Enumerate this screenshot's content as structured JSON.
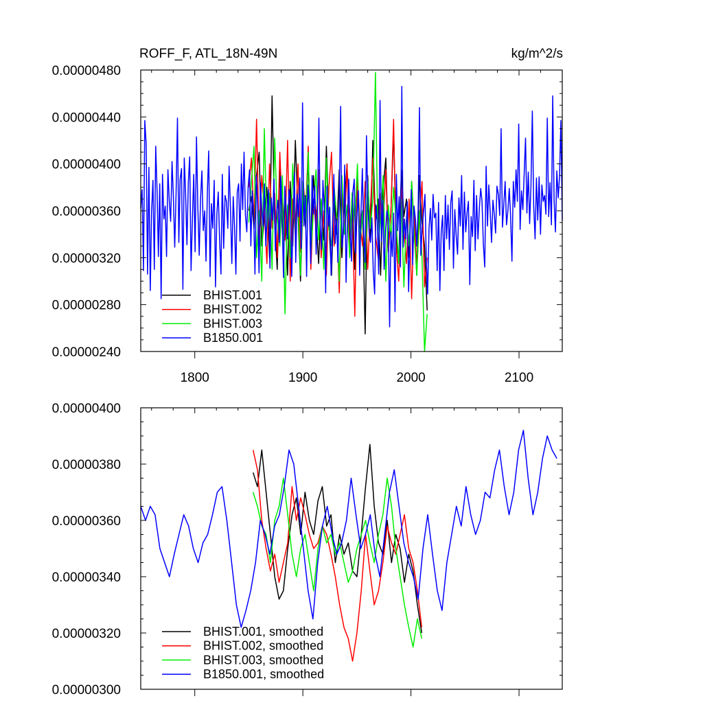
{
  "figure": {
    "title_left": "ROFF_F, ATL_18N-49N",
    "title_right": "kg/m^2/s"
  },
  "chart_data": [
    {
      "type": "line",
      "title": "ROFF_F, ATL_18N-49N",
      "units": "kg/m^2/s",
      "xlim": [
        1750,
        2140
      ],
      "ylim": [
        2.4e-06,
        4.8e-06
      ],
      "xticks": [
        1800,
        1900,
        2000,
        2100
      ],
      "xtick_labels": [
        "1800",
        "1900",
        "2000",
        "2100"
      ],
      "yticks": [
        2.4e-06,
        2.8e-06,
        3.2e-06,
        3.6e-06,
        4e-06,
        4.4e-06,
        4.8e-06
      ],
      "ytick_labels": [
        "0.00000240",
        "0.00000280",
        "0.00000320",
        "0.00000360",
        "0.00000400",
        "0.00000440",
        "0.00000480"
      ],
      "legend_position": "bottom-left",
      "series": [
        {
          "name": "BHIST.001",
          "color": "#000000",
          "x_start": 1850,
          "x_end": 2015,
          "values": [
            3.6,
            3.72,
            3.45,
            3.9,
            4.1,
            3.3,
            3.55,
            3.8,
            3.2,
            4.58,
            3.5,
            3.1,
            3.95,
            3.4,
            3.7,
            3.05,
            3.85,
            3.3,
            4.2,
            3.6,
            3.0,
            3.75,
            3.45,
            4.05,
            3.25,
            3.9,
            3.55,
            3.15,
            3.7,
            3.35,
            4.15,
            3.5,
            3.05,
            3.8,
            3.4,
            3.95,
            3.2,
            3.65,
            4.0,
            3.3,
            3.75,
            3.1,
            3.85,
            3.45,
            3.6,
            2.55,
            3.9,
            3.35,
            4.2,
            3.5,
            3.7,
            3.05,
            3.8,
            4.05,
            3.25,
            3.6,
            4.28,
            3.4,
            3.15,
            3.95,
            3.55,
            3.7,
            3.2,
            3.85,
            3.45,
            3.05,
            3.9,
            3.5,
            3.3,
            2.75
          ]
        },
        {
          "name": "BHIST.002",
          "color": "#ff0000",
          "x_start": 1850,
          "x_end": 2015,
          "values": [
            3.8,
            4.05,
            3.5,
            4.38,
            3.3,
            3.9,
            3.6,
            3.15,
            4.0,
            3.45,
            3.75,
            3.2,
            4.1,
            3.55,
            3.35,
            4.2,
            3.0,
            3.7,
            3.4,
            4.0,
            3.25,
            3.85,
            3.6,
            4.15,
            3.1,
            3.7,
            3.45,
            3.95,
            3.2,
            3.6,
            3.05,
            3.8,
            4.1,
            3.3,
            3.55,
            2.9,
            3.75,
            3.4,
            4.0,
            3.2,
            3.65,
            2.7,
            3.9,
            3.5,
            3.3,
            3.85,
            3.1,
            3.6,
            4.05,
            3.4,
            3.2,
            3.75,
            3.5,
            3.95,
            3.25,
            3.6,
            4.38,
            3.3,
            3.0,
            3.8,
            3.45,
            3.15,
            3.7,
            2.85,
            3.6,
            3.1,
            3.5,
            3.85,
            2.95,
            3.2
          ]
        },
        {
          "name": "BHIST.003",
          "color": "#00ee00",
          "x_start": 1850,
          "x_end": 2015,
          "values": [
            3.5,
            3.85,
            4.15,
            3.2,
            3.6,
            3.0,
            4.3,
            3.45,
            3.75,
            3.1,
            4.22,
            3.55,
            3.3,
            3.9,
            2.72,
            3.65,
            3.2,
            4.0,
            3.4,
            3.7,
            3.05,
            3.85,
            3.5,
            4.1,
            3.25,
            3.6,
            3.95,
            3.35,
            3.7,
            3.1,
            4.05,
            3.45,
            3.3,
            3.8,
            3.55,
            3.0,
            3.9,
            3.4,
            3.65,
            3.2,
            3.75,
            3.5,
            4.0,
            3.3,
            3.6,
            3.1,
            3.85,
            3.45,
            3.7,
            4.78,
            3.25,
            3.55,
            3.9,
            3.0,
            3.65,
            3.35,
            3.8,
            3.5,
            3.15,
            3.7,
            2.95,
            3.55,
            3.3,
            3.85,
            3.4,
            3.05,
            3.6,
            3.2,
            2.4,
            2.72
          ]
        },
        {
          "name": "B1850.001",
          "color": "#0000ff",
          "x_start": 1750,
          "x_end": 2140,
          "values": [
            3.62,
            3.78,
            3.09,
            4.37,
            4.17,
            3.06,
            3.97,
            2.92,
            3.59,
            3.86,
            3.1,
            4.15,
            3.77,
            3.21,
            3.83,
            2.85,
            3.91,
            3.53,
            3.64,
            3.21,
            3.95,
            3.68,
            3.51,
            4.02,
            3.73,
            3.29,
            3.75,
            4.39,
            3.33,
            3.87,
            3.96,
            2.93,
            4.05,
            3.74,
            3.31,
            3.84,
            4.06,
            3.09,
            3.54,
            3.91,
            3.25,
            4.23,
            3.62,
            3.22,
            3.7,
            3.94,
            3.43,
            3.6,
            3.17,
            3.77,
            4.11,
            3.04,
            3.66,
            3.45,
            3.86,
            2.95,
            3.57,
            3.76,
            3.35,
            3.06,
            3.91,
            3.28,
            3.73,
            3.68,
            3.45,
            3.98,
            3.62,
            3.15,
            3.72,
            3.46,
            3.06,
            3.76,
            3.83,
            3.34,
            4.0,
            3.61,
            4.1,
            3.56,
            3.42,
            3.81,
            3.95,
            3.3,
            3.77,
            3.58,
            3.06,
            3.9,
            3.65,
            3.07,
            3.84,
            3.61,
            3.47,
            3.83,
            3.3,
            3.59,
            3.78,
            3.11,
            3.71,
            3.52,
            3.87,
            3.26,
            3.6,
            3.69,
            3.33,
            3.89,
            3.51,
            3.03,
            3.81,
            3.61,
            3.36,
            3.78,
            3.69,
            3.04,
            3.51,
            3.92,
            3.16,
            3.74,
            3.55,
            3.88,
            3.28,
            4.52,
            3.47,
            3.73,
            3.04,
            3.82,
            3.65,
            3.15,
            3.9,
            3.57,
            3.81,
            3.23,
            3.61,
            4.39,
            3.49,
            3.27,
            3.86,
            3.61,
            2.9,
            3.81,
            3.47,
            3.63,
            3.05,
            3.44,
            3.91,
            3.32,
            3.53,
            3.16,
            3.75,
            4.49,
            3.29,
            3.41,
            3.99,
            2.99,
            3.52,
            3.87,
            3.44,
            3.17,
            3.76,
            3.87,
            3.24,
            3.55,
            3.77,
            3.05,
            3.59,
            3.96,
            3.41,
            3.16,
            4.24,
            3.68,
            3.41,
            3.33,
            3.54,
            3.08,
            2.89,
            3.65,
            3.51,
            3.06,
            4.54,
            3.34,
            3.69,
            3.1,
            3.41,
            3.6,
            3.53,
            2.61,
            3.42,
            3.21,
            3.58,
            2.74,
            3.91,
            3.43,
            3.72,
            3.12,
            4.66,
            3.29,
            3.53,
            3.36,
            3.68,
            2.91,
            3.39,
            3.78,
            3.14,
            3.64,
            3.53,
            3.3,
            3.61,
            4.48,
            3.22,
            3.46,
            3.59,
            3.74,
            3.2,
            2.89,
            3.45,
            3.62,
            3.35,
            3.74,
            3.54,
            3.58,
            3.09,
            3.67,
            2.92,
            3.42,
            3.56,
            3.09,
            3.73,
            3.36,
            3.65,
            3.27,
            3.67,
            3.77,
            3.11,
            3.61,
            3.39,
            3.23,
            3.71,
            3.47,
            3.9,
            3.27,
            3.76,
            3.42,
            3.59,
            3.68,
            2.97,
            3.55,
            3.38,
            3.86,
            3.26,
            3.73,
            3.36,
            3.62,
            3.79,
            3.68,
            3.31,
            3.12,
            3.98,
            3.47,
            3.82,
            3.59,
            3.33,
            3.69,
            3.57,
            3.41,
            3.81,
            3.74,
            3.56,
            4.3,
            3.46,
            3.65,
            3.85,
            3.48,
            3.6,
            3.79,
            3.56,
            3.17,
            3.85,
            3.63,
            3.95,
            3.68,
            4.34,
            3.44,
            3.77,
            3.61,
            3.91,
            4.22,
            3.58,
            3.93,
            3.49,
            3.81,
            4.45,
            3.64,
            3.36,
            3.88,
            3.52,
            3.89,
            3.4,
            3.82,
            3.68,
            3.73,
            3.57,
            4.39,
            3.55,
            3.84,
            3.48,
            4.58,
            3.69,
            3.42,
            3.94,
            3.71,
            3.89,
            4.37,
            3.52
          ]
        }
      ]
    },
    {
      "type": "line",
      "title": "",
      "xlim": [
        1750,
        2140
      ],
      "ylim": [
        3e-06,
        4e-06
      ],
      "xticks": [
        1800,
        1900,
        2000,
        2100
      ],
      "xtick_labels": [],
      "yticks": [
        3e-06,
        3.2e-06,
        3.4e-06,
        3.6e-06,
        3.8e-06,
        4e-06
      ],
      "ytick_labels": [
        "0.00000300",
        "0.00000320",
        "0.00000340",
        "0.00000360",
        "0.00000380",
        "0.00000400"
      ],
      "legend_position": "bottom-left",
      "series": [
        {
          "name": "BHIST.001, smoothed",
          "color": "#000000",
          "x_start": 1854,
          "x_end": 2010,
          "values": [
            3.77,
            3.72,
            3.85,
            3.7,
            3.55,
            3.4,
            3.32,
            3.35,
            3.5,
            3.62,
            3.68,
            3.55,
            3.7,
            3.6,
            3.55,
            3.67,
            3.72,
            3.58,
            3.62,
            3.45,
            3.55,
            3.48,
            3.52,
            3.42,
            3.4,
            3.55,
            3.72,
            3.87,
            3.65,
            3.52,
            3.48,
            3.6,
            3.45,
            3.55,
            3.5,
            3.38,
            3.48,
            3.42,
            3.3,
            3.2
          ]
        },
        {
          "name": "BHIST.002, smoothed",
          "color": "#ff0000",
          "x_start": 1854,
          "x_end": 2010,
          "values": [
            3.85,
            3.78,
            3.6,
            3.5,
            3.42,
            3.48,
            3.38,
            3.45,
            3.52,
            3.72,
            3.6,
            3.68,
            3.62,
            3.55,
            3.5,
            3.52,
            3.58,
            3.55,
            3.48,
            3.4,
            3.3,
            3.22,
            3.18,
            3.1,
            3.2,
            3.35,
            3.55,
            3.42,
            3.3,
            3.35,
            3.45,
            3.58,
            3.52,
            3.48,
            3.55,
            3.62,
            3.5,
            3.45,
            3.35,
            3.22
          ]
        },
        {
          "name": "BHIST.003, smoothed",
          "color": "#00ee00",
          "x_start": 1854,
          "x_end": 2010,
          "values": [
            3.7,
            3.65,
            3.58,
            3.55,
            3.45,
            3.6,
            3.65,
            3.75,
            3.62,
            3.48,
            3.4,
            3.5,
            3.55,
            3.45,
            3.35,
            3.5,
            3.58,
            3.52,
            3.55,
            3.48,
            3.52,
            3.45,
            3.38,
            3.42,
            3.5,
            3.55,
            3.6,
            3.52,
            3.45,
            3.55,
            3.62,
            3.75,
            3.65,
            3.5,
            3.4,
            3.3,
            3.22,
            3.15,
            3.25,
            3.18
          ]
        },
        {
          "name": "B1850.001, smoothed",
          "color": "#0000ff",
          "x_start": 1750,
          "x_end": 2135,
          "values": [
            3.65,
            3.6,
            3.65,
            3.62,
            3.5,
            3.45,
            3.4,
            3.48,
            3.55,
            3.62,
            3.58,
            3.5,
            3.45,
            3.52,
            3.55,
            3.62,
            3.7,
            3.72,
            3.6,
            3.45,
            3.3,
            3.22,
            3.28,
            3.35,
            3.45,
            3.6,
            3.55,
            3.48,
            3.58,
            3.62,
            3.72,
            3.85,
            3.8,
            3.65,
            3.5,
            3.35,
            3.25,
            3.45,
            3.58,
            3.65,
            3.55,
            3.48,
            3.52,
            3.6,
            3.75,
            3.62,
            3.5,
            3.55,
            3.62,
            3.48,
            3.4,
            3.55,
            3.7,
            3.78,
            3.65,
            3.52,
            3.45,
            3.4,
            3.32,
            3.5,
            3.62,
            3.48,
            3.35,
            3.28,
            3.45,
            3.55,
            3.65,
            3.58,
            3.72,
            3.62,
            3.55,
            3.6,
            3.7,
            3.68,
            3.78,
            3.85,
            3.72,
            3.62,
            3.7,
            3.85,
            3.92,
            3.75,
            3.62,
            3.7,
            3.82,
            3.9,
            3.85,
            3.82
          ]
        }
      ]
    }
  ]
}
